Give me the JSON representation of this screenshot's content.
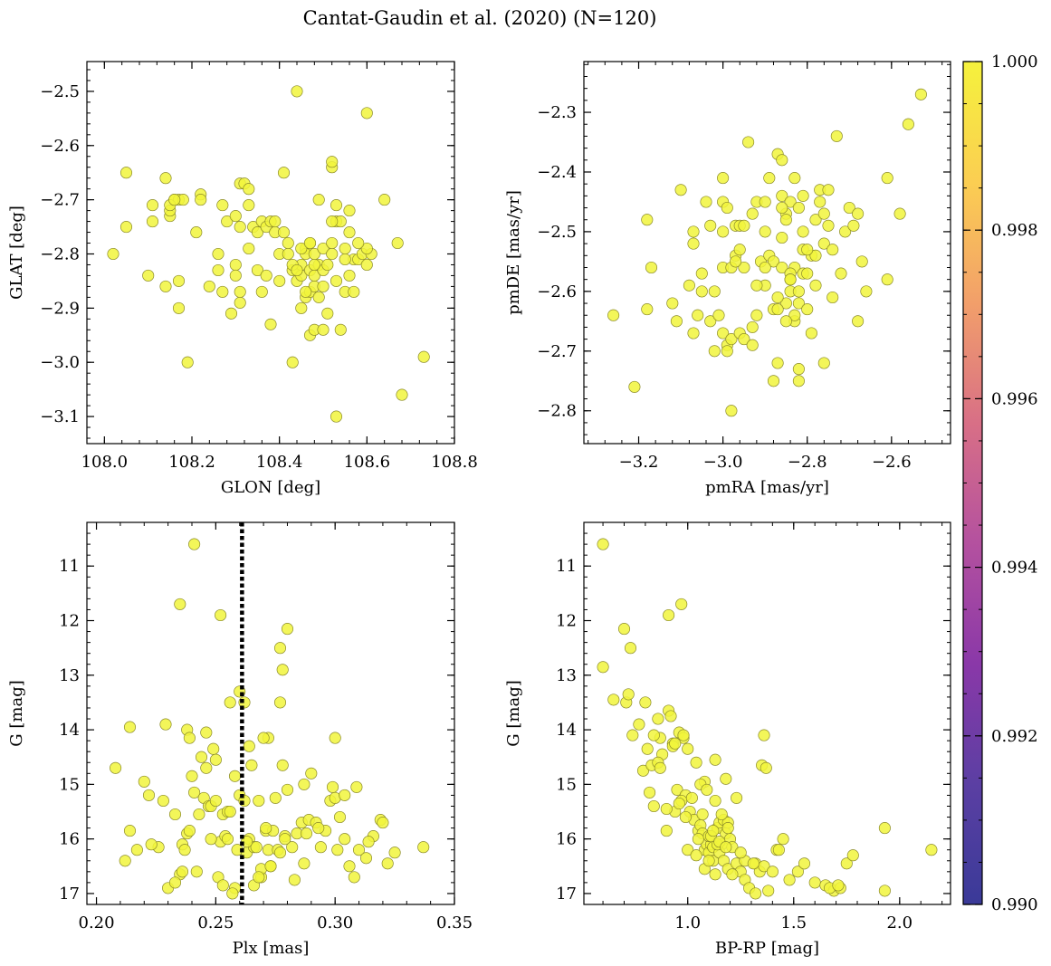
{
  "figure": {
    "suptitle": "Cantat-Gaudin et al. (2020) (N=120)",
    "marker_color": "#f1f53c",
    "marker_edge": "#8a8a2a",
    "colorbar": {
      "min": 0.99,
      "max": 1.0,
      "ticks": [
        "0.990",
        "0.992",
        "0.994",
        "0.996",
        "0.998",
        "1.000"
      ],
      "colormap": "plasma",
      "stops": [
        "#3a3a98",
        "#5b3fa3",
        "#8a38a8",
        "#b4519f",
        "#d86f86",
        "#f29f6a",
        "#fbce52",
        "#f5f23c"
      ]
    }
  },
  "chart_data": [
    {
      "type": "scatter",
      "xlabel": "GLON [deg]",
      "ylabel": "GLAT [deg]",
      "xlim": [
        107.96,
        108.8
      ],
      "ylim": [
        -3.15,
        -2.445
      ],
      "invert_y": false,
      "xticks": [
        108.0,
        108.2,
        108.4,
        108.6,
        108.8
      ],
      "xticklabels": [
        "108.0",
        "108.2",
        "108.4",
        "108.6",
        "108.8"
      ],
      "yticks": [
        -2.5,
        -2.6,
        -2.7,
        -2.8,
        -2.9,
        -3.0,
        -3.1
      ],
      "yticklabels": [
        "−2.5",
        "−2.6",
        "−2.7",
        "−2.8",
        "−2.9",
        "−3.0",
        "−3.1"
      ],
      "x": [
        108.02,
        108.05,
        108.05,
        108.1,
        108.11,
        108.11,
        108.14,
        108.15,
        108.15,
        108.16,
        108.17,
        108.17,
        108.17,
        108.18,
        108.19,
        108.21,
        108.22,
        108.26,
        108.26,
        108.27,
        108.27,
        108.28,
        108.29,
        108.3,
        108.3,
        108.31,
        108.31,
        108.31,
        108.32,
        108.33,
        108.33,
        108.34,
        108.35,
        108.35,
        108.36,
        108.36,
        108.37,
        108.38,
        108.38,
        108.39,
        108.4,
        108.41,
        108.41,
        108.42,
        108.43,
        108.43,
        108.44,
        108.44,
        108.44,
        108.45,
        108.45,
        108.45,
        108.46,
        108.46,
        108.46,
        108.47,
        108.47,
        108.47,
        108.47,
        108.48,
        108.48,
        108.48,
        108.48,
        108.49,
        108.49,
        108.5,
        108.5,
        108.5,
        108.51,
        108.51,
        108.52,
        108.52,
        108.52,
        108.53,
        108.53,
        108.53,
        108.54,
        108.54,
        108.55,
        108.55,
        108.56,
        108.56,
        108.57,
        108.57,
        108.58,
        108.59,
        108.6,
        108.6,
        108.61,
        108.64,
        108.67,
        108.68,
        108.73,
        108.14,
        108.15,
        108.16,
        108.3,
        108.37,
        108.4,
        108.43,
        108.44,
        108.46,
        108.48,
        108.52,
        108.53,
        108.55,
        108.6,
        108.5,
        108.42,
        108.31,
        108.33,
        108.22,
        108.24,
        108.45,
        108.39,
        108.47,
        108.52,
        108.49,
        108.58,
        108.56
      ],
      "y": [
        -2.8,
        -2.65,
        -2.75,
        -2.84,
        -2.71,
        -2.74,
        -2.66,
        -2.73,
        -2.72,
        -2.7,
        -2.9,
        -2.7,
        -2.85,
        -2.7,
        -3.0,
        -2.76,
        -2.69,
        -2.83,
        -2.8,
        -2.71,
        -2.87,
        -2.74,
        -2.91,
        -2.73,
        -2.82,
        -2.89,
        -2.87,
        -2.67,
        -2.67,
        -2.71,
        -2.79,
        -2.75,
        -2.76,
        -2.83,
        -2.74,
        -2.87,
        -2.75,
        -2.74,
        -2.93,
        -2.76,
        -2.85,
        -2.76,
        -2.65,
        -2.78,
        -2.83,
        -3.0,
        -2.5,
        -2.83,
        -2.85,
        -2.82,
        -2.9,
        -2.84,
        -2.79,
        -2.8,
        -2.88,
        -2.95,
        -2.83,
        -2.78,
        -2.87,
        -2.86,
        -2.84,
        -2.94,
        -2.8,
        -2.82,
        -2.7,
        -2.79,
        -2.83,
        -2.94,
        -2.82,
        -2.91,
        -2.64,
        -2.63,
        -2.78,
        -3.1,
        -2.74,
        -2.85,
        -2.74,
        -2.94,
        -2.79,
        -2.87,
        -2.84,
        -2.76,
        -2.81,
        -2.87,
        -2.81,
        -2.8,
        -2.54,
        -2.82,
        -2.8,
        -2.7,
        -2.78,
        -3.06,
        -2.99,
        -2.86,
        -2.71,
        -2.7,
        -2.84,
        -2.84,
        -2.8,
        -2.82,
        -2.83,
        -2.87,
        -2.82,
        -2.74,
        -2.71,
        -2.81,
        -2.79,
        -2.86,
        -2.8,
        -2.75,
        -2.68,
        -2.7,
        -2.86,
        -2.79,
        -2.74,
        -2.78,
        -2.8,
        -2.88,
        -2.78,
        -2.72
      ]
    },
    {
      "type": "scatter",
      "xlabel": "pmRA [mas/yr]",
      "ylabel": "pmDE [mas/yr]",
      "xlim": [
        -3.33,
        -2.46
      ],
      "ylim": [
        -2.855,
        -2.215
      ],
      "invert_y": false,
      "xticks": [
        -3.2,
        -3.0,
        -2.8,
        -2.6
      ],
      "xticklabels": [
        "−3.2",
        "−3.0",
        "−2.8",
        "−2.6"
      ],
      "yticks": [
        -2.3,
        -2.4,
        -2.5,
        -2.6,
        -2.7,
        -2.8
      ],
      "yticklabels": [
        "−2.3",
        "−2.4",
        "−2.5",
        "−2.6",
        "−2.7",
        "−2.8"
      ],
      "x": [
        -3.26,
        -3.21,
        -3.18,
        -3.18,
        -3.17,
        -3.12,
        -3.11,
        -3.1,
        -3.08,
        -3.07,
        -3.07,
        -3.07,
        -3.06,
        -3.05,
        -3.05,
        -3.04,
        -3.03,
        -3.03,
        -3.02,
        -3.02,
        -3.01,
        -3.0,
        -3.0,
        -3.0,
        -3.0,
        -2.99,
        -2.99,
        -2.99,
        -2.98,
        -2.98,
        -2.98,
        -2.97,
        -2.97,
        -2.96,
        -2.96,
        -2.95,
        -2.95,
        -2.94,
        -2.93,
        -2.93,
        -2.92,
        -2.92,
        -2.91,
        -2.9,
        -2.9,
        -2.89,
        -2.89,
        -2.88,
        -2.88,
        -2.87,
        -2.87,
        -2.86,
        -2.86,
        -2.86,
        -2.85,
        -2.85,
        -2.85,
        -2.84,
        -2.84,
        -2.83,
        -2.83,
        -2.83,
        -2.82,
        -2.82,
        -2.82,
        -2.81,
        -2.81,
        -2.81,
        -2.8,
        -2.8,
        -2.79,
        -2.78,
        -2.78,
        -2.77,
        -2.77,
        -2.76,
        -2.76,
        -2.75,
        -2.75,
        -2.74,
        -2.73,
        -2.72,
        -2.71,
        -2.7,
        -2.69,
        -2.68,
        -2.68,
        -2.67,
        -2.66,
        -2.61,
        -2.61,
        -2.58,
        -2.56,
        -2.53,
        -2.9,
        -2.87,
        -2.86,
        -2.84,
        -2.83,
        -2.82,
        -2.79,
        -2.76,
        -2.74,
        -2.92,
        -2.95,
        -2.97,
        -3.0,
        -2.88,
        -2.85,
        -2.84,
        -2.81,
        -2.9,
        -2.93,
        -2.87,
        -2.96,
        -2.8,
        -2.78,
        -2.82,
        -2.86,
        -2.84
      ],
      "y": [
        -2.64,
        -2.76,
        -2.48,
        -2.63,
        -2.56,
        -2.62,
        -2.65,
        -2.43,
        -2.59,
        -2.5,
        -2.52,
        -2.67,
        -2.64,
        -2.6,
        -2.57,
        -2.45,
        -2.49,
        -2.65,
        -2.7,
        -2.6,
        -2.64,
        -2.56,
        -2.5,
        -2.67,
        -2.45,
        -2.69,
        -2.7,
        -2.46,
        -2.56,
        -2.8,
        -2.68,
        -2.54,
        -2.49,
        -2.49,
        -2.67,
        -2.68,
        -2.56,
        -2.35,
        -2.66,
        -2.69,
        -2.64,
        -2.45,
        -2.55,
        -2.59,
        -2.5,
        -2.54,
        -2.41,
        -2.55,
        -2.63,
        -2.37,
        -2.72,
        -2.38,
        -2.56,
        -2.44,
        -2.47,
        -2.62,
        -2.48,
        -2.6,
        -2.45,
        -2.41,
        -2.56,
        -2.65,
        -2.46,
        -2.62,
        -2.73,
        -2.57,
        -2.53,
        -2.44,
        -2.63,
        -2.57,
        -2.54,
        -2.54,
        -2.48,
        -2.45,
        -2.43,
        -2.52,
        -2.47,
        -2.43,
        -2.49,
        -2.53,
        -2.34,
        -2.57,
        -2.5,
        -2.46,
        -2.49,
        -2.65,
        -2.47,
        -2.55,
        -2.6,
        -2.58,
        -2.41,
        -2.47,
        -2.32,
        -2.27,
        -2.45,
        -2.61,
        -2.46,
        -2.57,
        -2.64,
        -2.75,
        -2.67,
        -2.72,
        -2.61,
        -2.59,
        -2.49,
        -2.55,
        -2.41,
        -2.75,
        -2.65,
        -2.58,
        -2.5,
        -2.56,
        -2.47,
        -2.63,
        -2.53,
        -2.53,
        -2.59,
        -2.6,
        -2.51,
        -2.58
      ]
    },
    {
      "type": "scatter",
      "xlabel": "Plx [mas]",
      "ylabel": "G [mag]",
      "xlim": [
        0.196,
        0.35
      ],
      "ylim": [
        10.2,
        17.2
      ],
      "invert_y": true,
      "xticks": [
        0.2,
        0.25,
        0.3,
        0.35
      ],
      "xticklabels": [
        "0.20",
        "0.25",
        "0.30",
        "0.35"
      ],
      "yticks": [
        11,
        12,
        13,
        14,
        15,
        16,
        17
      ],
      "yticklabels": [
        "11",
        "12",
        "13",
        "14",
        "15",
        "16",
        "17"
      ],
      "vline": 0.261,
      "x": [
        0.241,
        0.235,
        0.252,
        0.28,
        0.277,
        0.278,
        0.26,
        0.256,
        0.262,
        0.277,
        0.208,
        0.214,
        0.229,
        0.238,
        0.239,
        0.246,
        0.25,
        0.264,
        0.272,
        0.3,
        0.214,
        0.22,
        0.222,
        0.226,
        0.228,
        0.233,
        0.235,
        0.236,
        0.237,
        0.238,
        0.239,
        0.24,
        0.241,
        0.243,
        0.245,
        0.246,
        0.247,
        0.248,
        0.249,
        0.25,
        0.251,
        0.252,
        0.253,
        0.254,
        0.255,
        0.256,
        0.258,
        0.259,
        0.26,
        0.262,
        0.263,
        0.264,
        0.265,
        0.266,
        0.267,
        0.268,
        0.269,
        0.27,
        0.271,
        0.272,
        0.273,
        0.274,
        0.275,
        0.276,
        0.277,
        0.278,
        0.279,
        0.28,
        0.282,
        0.284,
        0.286,
        0.287,
        0.289,
        0.29,
        0.292,
        0.294,
        0.296,
        0.298,
        0.3,
        0.302,
        0.304,
        0.306,
        0.308,
        0.31,
        0.313,
        0.316,
        0.319,
        0.32,
        0.322,
        0.325,
        0.337,
        0.212,
        0.217,
        0.223,
        0.23,
        0.236,
        0.242,
        0.248,
        0.253,
        0.257,
        0.263,
        0.266,
        0.269,
        0.273,
        0.279,
        0.283,
        0.288,
        0.293,
        0.299,
        0.304,
        0.309,
        0.314,
        0.233,
        0.244,
        0.258,
        0.271,
        0.287,
        0.301,
        0.268,
        0.255
      ],
      "y": [
        10.6,
        11.7,
        11.9,
        12.15,
        12.5,
        12.9,
        13.3,
        13.5,
        13.5,
        13.5,
        14.7,
        13.95,
        13.9,
        14.0,
        14.15,
        14.05,
        14.55,
        14.3,
        14.15,
        14.15,
        15.85,
        14.95,
        15.2,
        16.15,
        15.3,
        15.55,
        16.65,
        16.1,
        16.2,
        15.9,
        15.85,
        14.85,
        15.15,
        15.55,
        15.25,
        14.7,
        15.4,
        15.4,
        14.35,
        15.3,
        16.7,
        16.05,
        15.55,
        15.95,
        15.5,
        15.5,
        16.9,
        16.2,
        15.2,
        15.3,
        16.25,
        16.0,
        14.65,
        16.15,
        16.15,
        15.3,
        16.7,
        14.15,
        15.85,
        16.2,
        16.5,
        15.85,
        15.25,
        16.2,
        16.25,
        14.65,
        15.95,
        15.1,
        16.15,
        15.9,
        15.7,
        16.45,
        15.65,
        14.8,
        15.7,
        16.15,
        15.85,
        15.3,
        15.25,
        15.6,
        15.2,
        16.5,
        16.7,
        16.2,
        16.35,
        15.95,
        15.65,
        15.7,
        16.45,
        16.25,
        16.15,
        16.4,
        16.2,
        16.1,
        16.9,
        16.6,
        16.6,
        16.0,
        16.85,
        17.0,
        16.05,
        16.85,
        16.55,
        16.5,
        16.0,
        16.75,
        15.9,
        15.8,
        15.05,
        16.0,
        15.05,
        16.05,
        16.8,
        14.5,
        14.85,
        15.8,
        15.0,
        16.2,
        16.7,
        16.0
      ]
    },
    {
      "type": "scatter",
      "xlabel": "BP-RP [mag]",
      "ylabel": "G [mag]",
      "xlim": [
        0.51,
        2.24
      ],
      "ylim": [
        10.2,
        17.2
      ],
      "invert_y": true,
      "xticks": [
        1.0,
        1.5,
        2.0
      ],
      "xticklabels": [
        "1.0",
        "1.5",
        "2.0"
      ],
      "yticks": [
        11,
        12,
        13,
        14,
        15,
        16,
        17
      ],
      "yticklabels": [
        "11",
        "12",
        "13",
        "14",
        "15",
        "16",
        "17"
      ],
      "x": [
        0.6,
        0.6,
        0.7,
        0.73,
        0.91,
        0.97,
        0.65,
        0.71,
        0.74,
        0.8,
        0.77,
        0.72,
        0.86,
        0.91,
        0.92,
        0.81,
        0.87,
        0.93,
        0.96,
        0.98,
        0.79,
        0.83,
        0.95,
        0.82,
        0.84,
        0.99,
        0.9,
        0.94,
        0.97,
        1.0,
        1.01,
        1.03,
        1.05,
        1.06,
        1.07,
        1.08,
        1.09,
        1.1,
        1.11,
        1.12,
        1.13,
        1.14,
        1.15,
        1.16,
        1.17,
        1.18,
        1.19,
        1.2,
        1.08,
        1.1,
        1.12,
        1.15,
        1.17,
        1.19,
        1.21,
        1.23,
        1.25,
        1.27,
        1.29,
        1.32,
        1.34,
        1.36,
        1.38,
        1.4,
        1.42,
        1.45,
        1.48,
        1.52,
        1.55,
        1.6,
        1.65,
        1.69,
        1.72,
        1.75,
        1.78,
        1.93,
        1.36,
        1.35,
        1.37,
        1.23,
        1.18,
        1.13,
        1.08,
        0.98,
        0.93,
        0.88,
        0.86,
        0.94,
        1.0,
        1.04,
        1.06,
        1.09,
        1.13,
        1.16,
        1.19,
        1.05,
        1.1,
        1.14,
        1.04,
        1.21,
        1.27,
        1.32,
        1.43,
        1.67,
        1.71,
        1.93,
        2.15,
        0.9,
        0.96,
        1.02,
        1.07,
        1.11,
        1.15,
        1.18,
        1.25,
        1.31,
        0.84,
        0.87,
        0.99,
        1.12
      ],
      "y": [
        10.6,
        12.85,
        12.15,
        12.5,
        11.9,
        11.7,
        13.45,
        13.5,
        14.1,
        13.5,
        13.9,
        13.35,
        13.8,
        13.65,
        13.75,
        14.35,
        14.15,
        14.25,
        14.05,
        14.15,
        14.75,
        14.65,
        15.1,
        15.15,
        15.4,
        15.2,
        15.85,
        15.5,
        15.3,
        16.2,
        15.5,
        15.65,
        15.85,
        15.75,
        15.9,
        16.2,
        16.1,
        16.25,
        16.1,
        16.4,
        16.65,
        15.8,
        15.7,
        16.1,
        15.65,
        15.9,
        15.7,
        16.0,
        16.55,
        16.4,
        16.15,
        16.25,
        16.4,
        16.55,
        16.15,
        16.45,
        16.6,
        16.75,
        16.9,
        16.45,
        16.6,
        16.5,
        16.95,
        16.6,
        16.2,
        16.0,
        16.75,
        16.6,
        16.45,
        16.8,
        16.85,
        16.95,
        16.9,
        16.45,
        16.3,
        15.8,
        14.1,
        14.65,
        14.7,
        15.25,
        14.9,
        14.55,
        14.95,
        14.1,
        14.3,
        14.45,
        14.6,
        14.25,
        14.35,
        14.6,
        15.0,
        15.1,
        15.3,
        15.55,
        15.8,
        16.0,
        15.95,
        16.1,
        16.3,
        16.65,
        16.4,
        17.0,
        16.2,
        16.9,
        16.85,
        16.95,
        16.2,
        15.45,
        15.35,
        15.25,
        15.55,
        15.95,
        16.05,
        16.15,
        16.25,
        16.45,
        14.1,
        14.7,
        15.6,
        15.85
      ]
    }
  ]
}
